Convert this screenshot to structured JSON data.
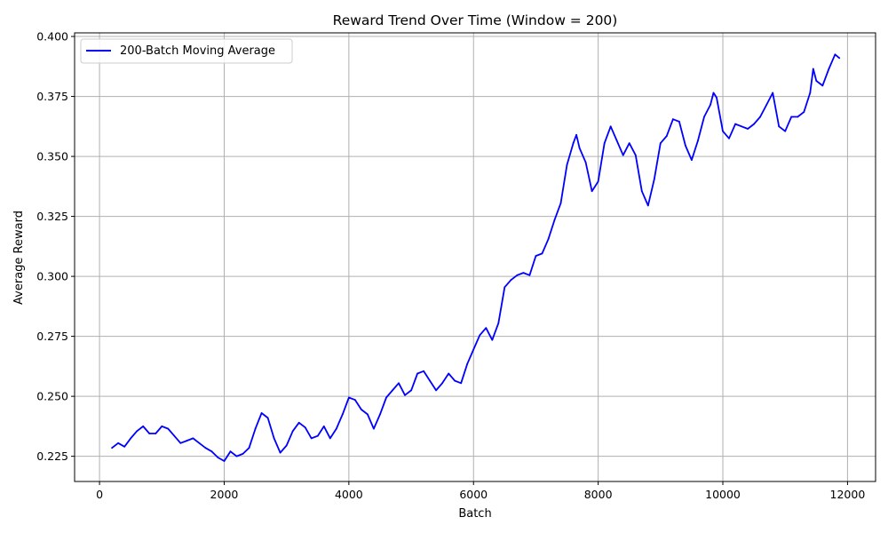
{
  "chart_data": {
    "type": "line",
    "title": "Reward Trend Over Time (Window = 200)",
    "xlabel": "Batch",
    "ylabel": "Average Reward",
    "xlim": [
      -400,
      12450
    ],
    "ylim": [
      0.2145,
      0.4015
    ],
    "xticks": [
      0,
      2000,
      4000,
      6000,
      8000,
      10000,
      12000
    ],
    "yticks": [
      0.225,
      0.25,
      0.275,
      0.3,
      0.325,
      0.35,
      0.375,
      0.4
    ],
    "xtick_labels": [
      "0",
      "2000",
      "4000",
      "6000",
      "8000",
      "10000",
      "12000"
    ],
    "ytick_labels": [
      "0.225",
      "0.250",
      "0.275",
      "0.300",
      "0.325",
      "0.350",
      "0.375",
      "0.400"
    ],
    "grid": true,
    "legend_position": "top-left",
    "series": [
      {
        "name": "200-Batch Moving Average",
        "color": "#0000ff",
        "x": [
          200,
          300,
          400,
          500,
          600,
          700,
          800,
          900,
          1000,
          1100,
          1200,
          1300,
          1400,
          1500,
          1600,
          1700,
          1800,
          1900,
          2000,
          2100,
          2200,
          2300,
          2400,
          2500,
          2600,
          2700,
          2800,
          2900,
          3000,
          3100,
          3200,
          3300,
          3400,
          3500,
          3600,
          3700,
          3800,
          3900,
          4000,
          4100,
          4200,
          4300,
          4400,
          4500,
          4600,
          4700,
          4800,
          4900,
          5000,
          5100,
          5200,
          5300,
          5400,
          5500,
          5600,
          5700,
          5800,
          5900,
          6000,
          6100,
          6200,
          6300,
          6400,
          6500,
          6600,
          6700,
          6800,
          6900,
          7000,
          7100,
          7200,
          7300,
          7400,
          7500,
          7600,
          7650,
          7700,
          7800,
          7900,
          8000,
          8100,
          8200,
          8300,
          8400,
          8500,
          8600,
          8700,
          8800,
          8900,
          9000,
          9100,
          9200,
          9300,
          9400,
          9500,
          9600,
          9700,
          9800,
          9850,
          9900,
          10000,
          10100,
          10200,
          10300,
          10400,
          10500,
          10600,
          10700,
          10800,
          10900,
          11000,
          11100,
          11200,
          11300,
          11400,
          11450,
          11500,
          11600,
          11700,
          11800,
          11870
        ],
        "values": [
          0.2285,
          0.2305,
          0.229,
          0.2325,
          0.2355,
          0.2375,
          0.2345,
          0.2345,
          0.2375,
          0.2365,
          0.2335,
          0.2305,
          0.2315,
          0.2325,
          0.2305,
          0.2285,
          0.227,
          0.2245,
          0.223,
          0.227,
          0.225,
          0.226,
          0.2285,
          0.2365,
          0.243,
          0.241,
          0.2325,
          0.2265,
          0.2295,
          0.2355,
          0.239,
          0.237,
          0.2325,
          0.2335,
          0.2375,
          0.2325,
          0.2365,
          0.2425,
          0.2495,
          0.2485,
          0.2445,
          0.2425,
          0.2365,
          0.2425,
          0.2495,
          0.2525,
          0.2555,
          0.2505,
          0.2525,
          0.2595,
          0.2605,
          0.2565,
          0.2525,
          0.2555,
          0.2595,
          0.2565,
          0.2555,
          0.2635,
          0.2695,
          0.2755,
          0.2785,
          0.2735,
          0.2805,
          0.2955,
          0.2985,
          0.3005,
          0.3015,
          0.3005,
          0.3085,
          0.3095,
          0.3155,
          0.3235,
          0.3305,
          0.3465,
          0.3555,
          0.359,
          0.3535,
          0.3475,
          0.3355,
          0.3395,
          0.3555,
          0.3625,
          0.3565,
          0.3505,
          0.3555,
          0.3505,
          0.3355,
          0.3295,
          0.3405,
          0.3555,
          0.3585,
          0.3655,
          0.3645,
          0.3545,
          0.3485,
          0.3565,
          0.3665,
          0.3715,
          0.3765,
          0.3745,
          0.3605,
          0.3575,
          0.3635,
          0.3625,
          0.3615,
          0.3635,
          0.3665,
          0.3715,
          0.3765,
          0.3625,
          0.3605,
          0.3665,
          0.3665,
          0.3685,
          0.3765,
          0.3865,
          0.3815,
          0.3795,
          0.3865,
          0.3925,
          0.391
        ]
      }
    ]
  }
}
